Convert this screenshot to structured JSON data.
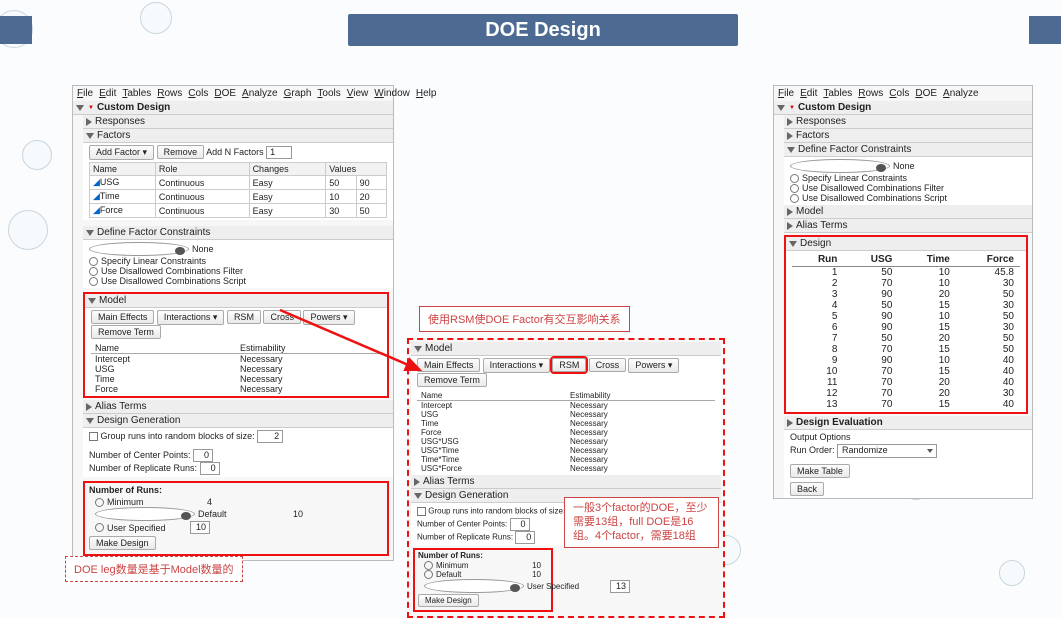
{
  "title": "DOE Design",
  "menu1": [
    "File",
    "Edit",
    "Tables",
    "Rows",
    "Cols",
    "DOE",
    "Analyze",
    "Graph",
    "Tools",
    "View",
    "Window",
    "Help"
  ],
  "menu2": [
    "File",
    "Edit",
    "Tables",
    "Rows",
    "Cols",
    "DOE",
    "Analyze"
  ],
  "sections": {
    "custom_design": "Custom Design",
    "responses": "Responses",
    "factors": "Factors",
    "define_constraints": "Define Factor Constraints",
    "model": "Model",
    "alias": "Alias Terms",
    "design_gen": "Design Generation",
    "number_runs": "Number of Runs:",
    "design": "Design",
    "design_eval": "Design Evaluation"
  },
  "factor_btns": {
    "add": "Add Factor",
    "remove": "Remove",
    "addn": "Add N Factors",
    "addn_val": "1"
  },
  "factors_hdr": [
    "Name",
    "Role",
    "Changes",
    "Values"
  ],
  "factors_rows": [
    [
      "USG",
      "Continuous",
      "Easy",
      "50",
      "90"
    ],
    [
      "Time",
      "Continuous",
      "Easy",
      "10",
      "20"
    ],
    [
      "Force",
      "Continuous",
      "Easy",
      "30",
      "50"
    ]
  ],
  "constraints_opts": [
    "None",
    "Specify Linear Constraints",
    "Use Disallowed Combinations Filter",
    "Use Disallowed Combinations Script"
  ],
  "model_btns": [
    "Main Effects",
    "Interactions",
    "RSM",
    "Cross",
    "Powers",
    "Remove Term"
  ],
  "model_hdr": [
    "Name",
    "Estimability"
  ],
  "model_rows_left": [
    [
      "Intercept",
      "Necessary"
    ],
    [
      "USG",
      "Necessary"
    ],
    [
      "Time",
      "Necessary"
    ],
    [
      "Force",
      "Necessary"
    ]
  ],
  "model_rows_mid": [
    [
      "Intercept",
      "Necessary"
    ],
    [
      "USG",
      "Necessary"
    ],
    [
      "Time",
      "Necessary"
    ],
    [
      "Force",
      "Necessary"
    ],
    [
      "USG*USG",
      "Necessary"
    ],
    [
      "USG*Time",
      "Necessary"
    ],
    [
      "Time*Time",
      "Necessary"
    ],
    [
      "USG*Force",
      "Necessary"
    ]
  ],
  "design_gen": {
    "group_label": "Group runs into random blocks of size:",
    "block_size": "2",
    "center_label": "Number of Center Points:",
    "center_val": "0",
    "rep_label": "Number of Replicate Runs:",
    "rep_val": "0"
  },
  "runs_left": {
    "min": "4",
    "def": "10",
    "user": "10",
    "selected": "Default"
  },
  "runs_mid": {
    "min": "10",
    "def": "10",
    "user": "13",
    "selected": "User Specified"
  },
  "runs_opts": [
    "Minimum",
    "Default",
    "User Specified"
  ],
  "make_design": "Make Design",
  "design_hdr": [
    "Run",
    "USG",
    "Time",
    "Force"
  ],
  "design_rows": [
    [
      "1",
      "50",
      "10",
      "45.8"
    ],
    [
      "2",
      "70",
      "10",
      "30"
    ],
    [
      "3",
      "90",
      "20",
      "50"
    ],
    [
      "4",
      "50",
      "15",
      "30"
    ],
    [
      "5",
      "90",
      "10",
      "50"
    ],
    [
      "6",
      "90",
      "15",
      "30"
    ],
    [
      "7",
      "50",
      "20",
      "50"
    ],
    [
      "8",
      "70",
      "15",
      "50"
    ],
    [
      "9",
      "90",
      "10",
      "40"
    ],
    [
      "10",
      "70",
      "15",
      "40"
    ],
    [
      "11",
      "70",
      "20",
      "40"
    ],
    [
      "12",
      "70",
      "20",
      "30"
    ],
    [
      "13",
      "70",
      "15",
      "40"
    ]
  ],
  "design_eval": {
    "output_opts": "Output Options",
    "run_order_label": "Run Order:",
    "run_order_val": "Randomize",
    "make_table": "Make Table",
    "back": "Back"
  },
  "callouts": {
    "rsm": "使用RSM使DOE Factor有交互影响关系",
    "leg": "DOE leg数量是基于Model数量的",
    "factor": "一般3个factor的DOE，至少需要13组，full DOE是16组。4个factor，需要18组"
  }
}
